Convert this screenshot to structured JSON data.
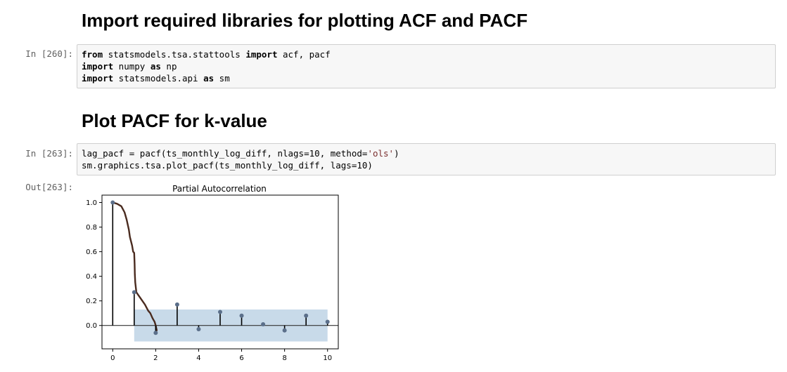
{
  "headings": {
    "import": "Import required libraries for plotting ACF and PACF",
    "plot": "Plot PACF for k-value"
  },
  "cell1": {
    "prompt": "In [260]:",
    "lines": [
      [
        {
          "t": "from",
          "k": "kw"
        },
        {
          "t": " statsmodels.tsa.stattools ",
          "k": ""
        },
        {
          "t": "import",
          "k": "kw"
        },
        {
          "t": " acf, pacf",
          "k": ""
        }
      ],
      [
        {
          "t": "import",
          "k": "kw"
        },
        {
          "t": " numpy ",
          "k": ""
        },
        {
          "t": "as",
          "k": "kw"
        },
        {
          "t": " np",
          "k": ""
        }
      ],
      [
        {
          "t": "import",
          "k": "kw"
        },
        {
          "t": " statsmodels.api ",
          "k": ""
        },
        {
          "t": "as",
          "k": "kw"
        },
        {
          "t": " sm",
          "k": ""
        }
      ]
    ]
  },
  "cell2": {
    "prompt": "In [263]:",
    "lines": [
      [
        {
          "t": "lag_pacf ",
          "k": ""
        },
        {
          "t": "=",
          "k": "op"
        },
        {
          "t": " pacf(ts_monthly_log_diff, nlags",
          "k": ""
        },
        {
          "t": "=",
          "k": "op"
        },
        {
          "t": "10",
          "k": "num"
        },
        {
          "t": ", method",
          "k": ""
        },
        {
          "t": "=",
          "k": "op"
        },
        {
          "t": "'ols'",
          "k": "str"
        },
        {
          "t": ")",
          "k": ""
        }
      ],
      [
        {
          "t": "sm.graphics.tsa.plot_pacf(ts_monthly_log_diff, lags",
          "k": ""
        },
        {
          "t": "=",
          "k": "op"
        },
        {
          "t": "10",
          "k": "num"
        },
        {
          "t": ")",
          "k": ""
        }
      ]
    ]
  },
  "output": {
    "prompt": "Out[263]:"
  },
  "chart_data": {
    "type": "stem",
    "title": "Partial Autocorrelation",
    "xlabel": "",
    "ylabel": "",
    "x": [
      0,
      1,
      2,
      3,
      4,
      5,
      6,
      7,
      8,
      9,
      10
    ],
    "values": [
      1.0,
      0.27,
      -0.06,
      0.17,
      -0.03,
      0.11,
      0.08,
      0.01,
      -0.04,
      0.08,
      0.03
    ],
    "confidence_band": {
      "from_x": 1,
      "to_x": 10,
      "lower": -0.13,
      "upper": 0.13
    },
    "xlim": [
      -0.5,
      10.5
    ],
    "ylim": [
      -0.19,
      1.06
    ],
    "xticks": [
      "0",
      "2",
      "4",
      "6",
      "8",
      "10"
    ],
    "xtick_values": [
      0,
      2,
      4,
      6,
      8,
      10
    ],
    "yticks": [
      "0.0",
      "0.2",
      "0.4",
      "0.6",
      "0.8",
      "1.0"
    ],
    "ytick_values": [
      0.0,
      0.2,
      0.4,
      0.6,
      0.8,
      1.0
    ],
    "overlay_curve": [
      [
        0.0,
        1.0
      ],
      [
        0.2,
        0.99
      ],
      [
        0.4,
        0.97
      ],
      [
        0.55,
        0.92
      ],
      [
        0.65,
        0.86
      ],
      [
        0.75,
        0.78
      ],
      [
        0.8,
        0.72
      ],
      [
        0.9,
        0.65
      ],
      [
        0.95,
        0.6
      ],
      [
        1.0,
        0.59
      ],
      [
        1.02,
        0.5
      ],
      [
        1.03,
        0.42
      ],
      [
        1.05,
        0.35
      ],
      [
        1.08,
        0.3
      ],
      [
        1.1,
        0.27
      ],
      [
        1.3,
        0.22
      ],
      [
        1.5,
        0.17
      ],
      [
        1.65,
        0.12
      ],
      [
        1.75,
        0.1
      ],
      [
        1.85,
        0.06
      ],
      [
        1.95,
        0.03
      ],
      [
        2.0,
        0.0
      ],
      [
        2.05,
        -0.04
      ]
    ],
    "colors": {
      "stem": "#000000",
      "marker": "#5b6f8a",
      "band": "#c5d8e8",
      "curve": "#4a2b1f",
      "zero_line": "#333333"
    }
  }
}
